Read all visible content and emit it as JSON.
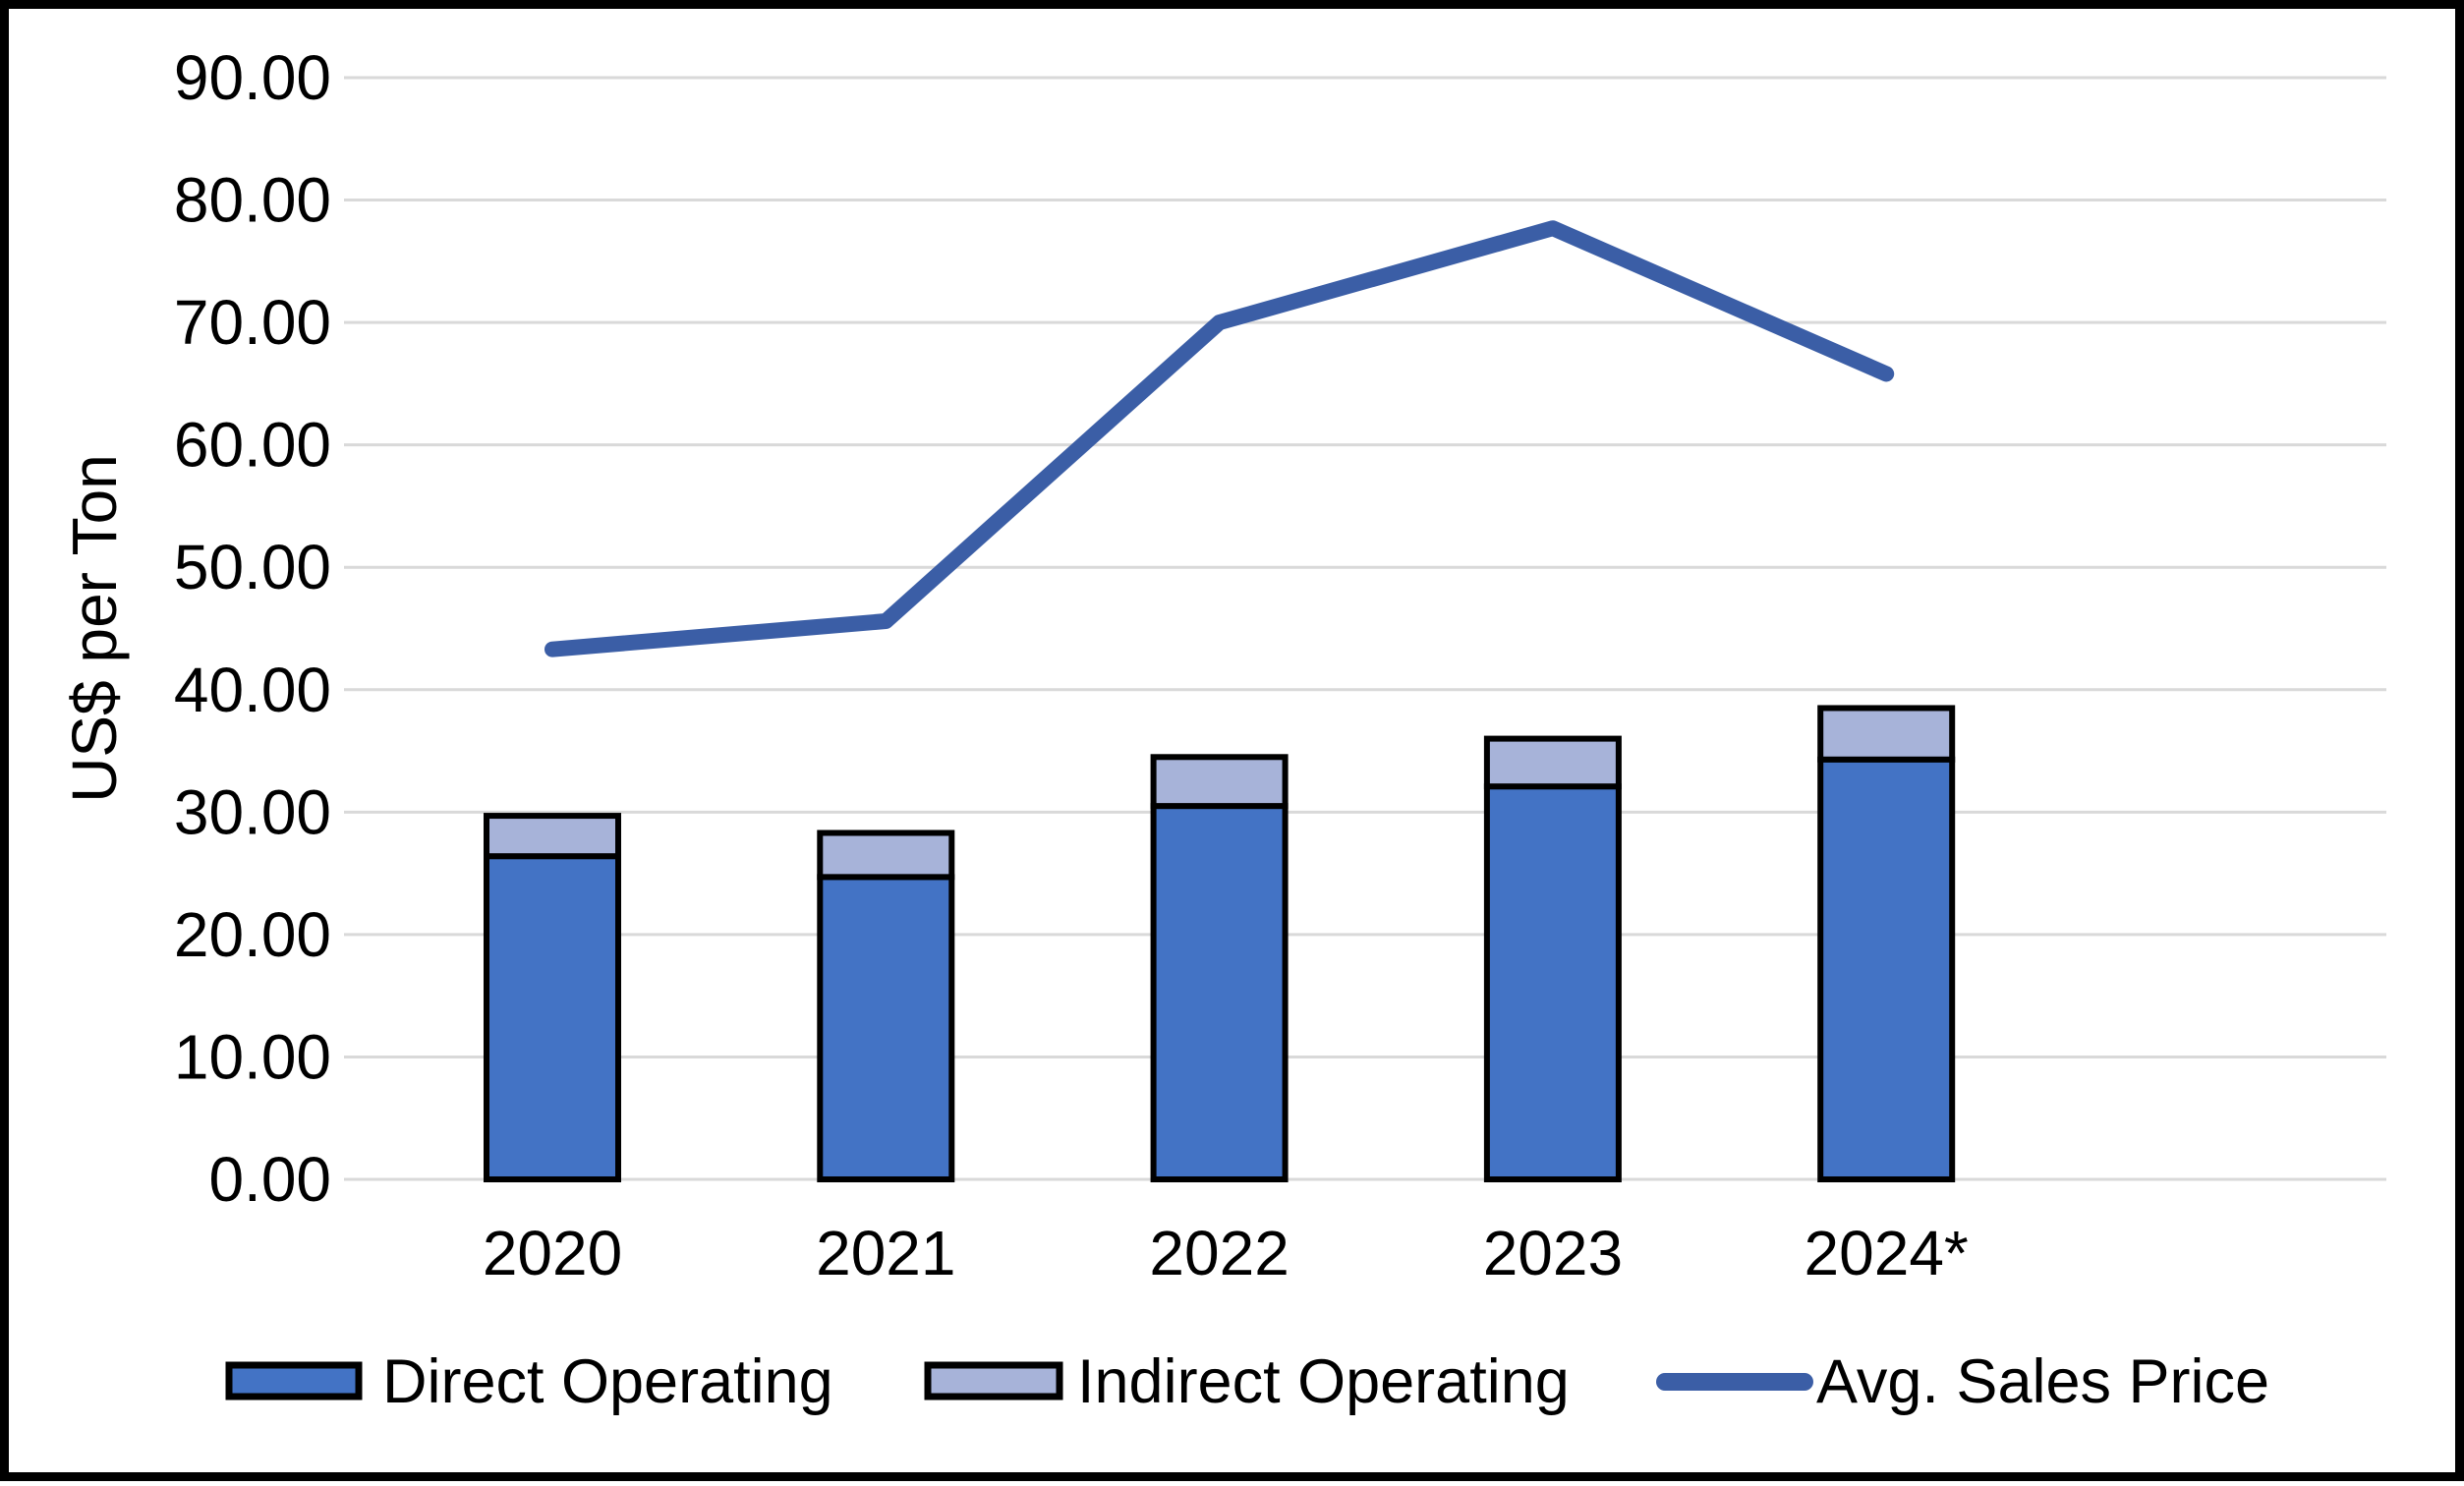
{
  "chart_data": {
    "type": "combo",
    "title": "",
    "categories": [
      "2020",
      "2021",
      "2022",
      "2023",
      "2024*"
    ],
    "series": [
      {
        "name": "Direct Operating",
        "type": "bar",
        "stacked": true,
        "values": [
          26.4,
          24.7,
          30.5,
          32.1,
          34.3
        ],
        "color": "#4373C5"
      },
      {
        "name": "Indirect Operating",
        "type": "bar",
        "stacked": true,
        "values": [
          3.3,
          3.6,
          4.0,
          3.9,
          4.2
        ],
        "color": "#A7B3D9"
      },
      {
        "name": "Avg. Sales Price",
        "type": "line",
        "stacked": false,
        "values": [
          43.3,
          45.6,
          70.0,
          77.7,
          65.8
        ],
        "color": "#3B5EA6"
      }
    ],
    "stacked_totals": [
      29.7,
      28.3,
      34.5,
      36.0,
      38.5
    ],
    "xlabel": "",
    "ylabel": "US$ per Ton",
    "ylim": [
      0,
      90
    ],
    "ytick_values": [
      0,
      10,
      20,
      30,
      40,
      50,
      60,
      70,
      80,
      90
    ],
    "ytick_labels": [
      "0.00",
      "10.00",
      "20.00",
      "30.00",
      "40.00",
      "50.00",
      "60.00",
      "70.00",
      "80.00",
      "90.00"
    ],
    "grid": true,
    "gridline_color": "#D9D9D9",
    "bar_outline_color": "#000000",
    "text_color": "#000000",
    "frame_color": "#000000",
    "background_color": "#FFFFFF",
    "legend_position": "bottom"
  }
}
